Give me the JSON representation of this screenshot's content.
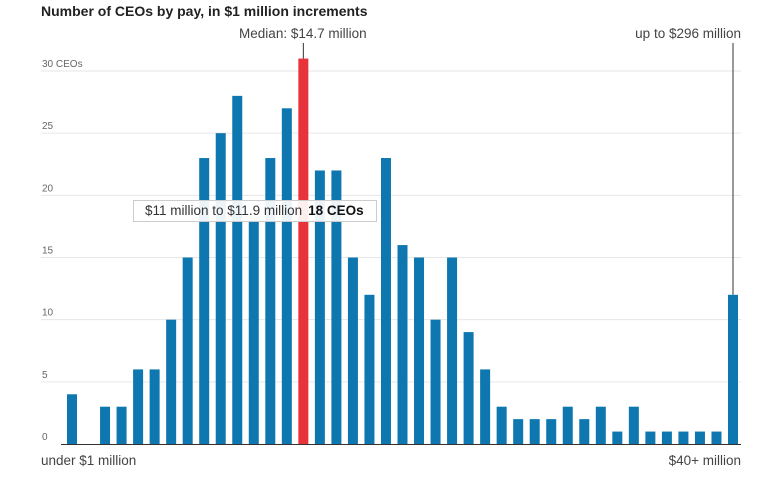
{
  "chart_title": "Number of CEOs by pay, in $1 million increments",
  "tooltip": {
    "range": "$11 million to $11.9 million",
    "value": "18 CEOs"
  },
  "colors": {
    "bar": "#0f77b0",
    "highlight": "#e8333a",
    "grid": "#e6e6e6",
    "baseline": "#333333"
  },
  "chart_data": {
    "type": "bar",
    "title": "Number of CEOs by pay, in $1 million increments",
    "xlabel": "",
    "ylabel": "",
    "ylim": [
      0,
      30
    ],
    "grid": true,
    "y_ticks": [
      0,
      5,
      10,
      15,
      20,
      25,
      30
    ],
    "y_tick_labels": [
      "0",
      "5",
      "10",
      "15",
      "20",
      "25",
      "30 CEOs"
    ],
    "x_axis_labels": {
      "start": "under $1 million",
      "end": "$40+ million"
    },
    "values": [
      4,
      0,
      3,
      3,
      6,
      6,
      10,
      15,
      23,
      25,
      28,
      18,
      23,
      27,
      31,
      22,
      22,
      15,
      12,
      23,
      16,
      15,
      10,
      15,
      9,
      6,
      3,
      2,
      2,
      2,
      3,
      2,
      3,
      1,
      3,
      1,
      1,
      1,
      1,
      1,
      12
    ],
    "highlight_index": 14,
    "annotations": [
      {
        "text": "Median: $14.7 million",
        "bar_index": 14
      },
      {
        "text": "up to $296 million",
        "bar_index": 40
      }
    ]
  }
}
